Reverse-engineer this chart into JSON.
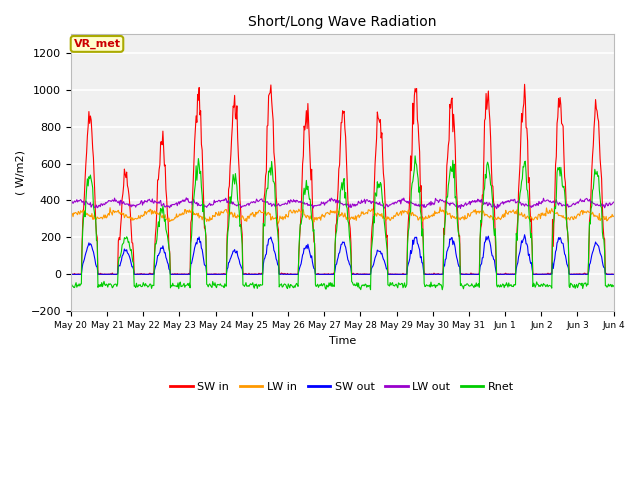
{
  "title": "Short/Long Wave Radiation",
  "xlabel": "Time",
  "ylabel": "( W/m2)",
  "ylim": [
    -200,
    1300
  ],
  "yticks": [
    -200,
    0,
    200,
    400,
    600,
    800,
    1000,
    1200
  ],
  "annotation_text": "VR_met",
  "annotation_color": "#cc0000",
  "annotation_bg": "#ffffcc",
  "annotation_border": "#aaaa00",
  "fig_bg": "#ffffff",
  "plot_bg": "#f0f0f0",
  "legend_labels": [
    "SW in",
    "LW in",
    "SW out",
    "LW out",
    "Rnet"
  ],
  "legend_colors": [
    "#ff0000",
    "#ff9900",
    "#0000ff",
    "#9900cc",
    "#00cc00"
  ],
  "n_days": 15,
  "start_day": 20,
  "sw_in_peaks": [
    880,
    540,
    730,
    1000,
    940,
    990,
    880,
    860,
    870,
    1000,
    960,
    960,
    960,
    960,
    920
  ],
  "lw_in_base": 340,
  "sw_out_peaks": [
    170,
    130,
    145,
    200,
    130,
    195,
    155,
    170,
    130,
    200,
    200,
    200,
    200,
    200,
    170
  ],
  "lw_out_base": 385,
  "rnet_peaks": [
    540,
    200,
    350,
    590,
    510,
    590,
    490,
    490,
    500,
    600,
    600,
    590,
    590,
    600,
    580
  ],
  "rnet_night_min": -60,
  "points_per_day": 48
}
